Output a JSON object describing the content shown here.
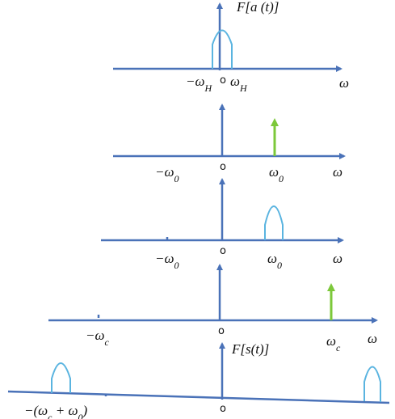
{
  "panels": [
    {
      "title": "F[a (t)]",
      "labels": [
        {
          "text": "−ω",
          "sub": "H"
        },
        {
          "text": "o"
        },
        {
          "text": "ω",
          "sub": "H"
        },
        {
          "text": "ω"
        }
      ]
    },
    {
      "labels": [
        {
          "text": "−ω",
          "sub": "0"
        },
        {
          "text": "o"
        },
        {
          "text": "ω",
          "sub": "0"
        },
        {
          "text": "ω"
        }
      ]
    },
    {
      "labels": [
        {
          "text": "−ω",
          "sub": "0"
        },
        {
          "text": "o"
        },
        {
          "text": "ω",
          "sub": "0"
        },
        {
          "text": "ω"
        }
      ]
    },
    {
      "labels": [
        {
          "text": "−ω",
          "sub": "c"
        },
        {
          "text": "o"
        },
        {
          "text": "ω",
          "sub": "c"
        },
        {
          "text": "ω"
        }
      ]
    },
    {
      "title": "F[s(t)]",
      "labels": [
        {
          "text": "−(ω",
          "sub": "c",
          "tail": " + ω",
          "sub2": "0",
          "end": ")"
        },
        {
          "text": "o"
        }
      ]
    }
  ]
}
